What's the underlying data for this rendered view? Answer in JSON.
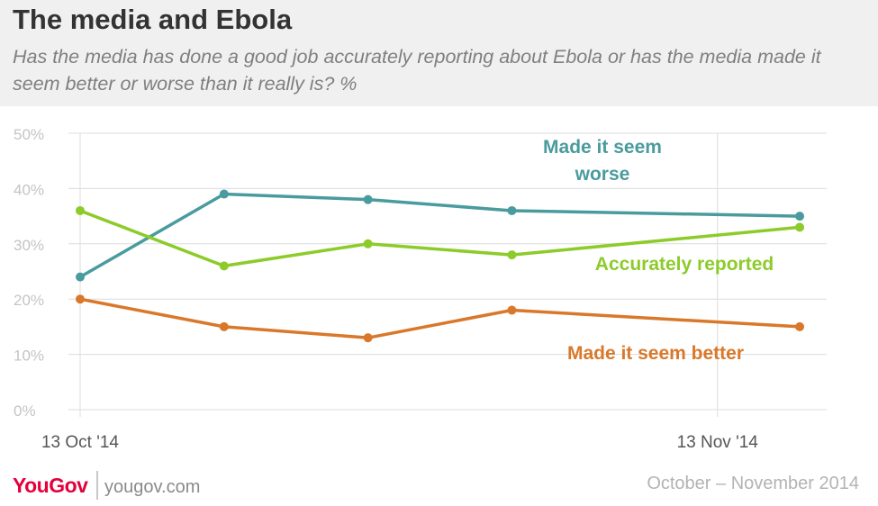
{
  "title": "The media and Ebola",
  "subtitle": "Has the media has done a good job accurately reporting about Ebola or has the media made it seem better or worse than it really is? %",
  "footer": {
    "logo": "YouGov",
    "site": "yougov.com",
    "date_range": "October – November 2014"
  },
  "chart_data": {
    "type": "line",
    "x": [
      "2014-10-13",
      "2014-10-20",
      "2014-10-27",
      "2014-11-03",
      "2014-11-17"
    ],
    "x_ticks": [
      {
        "date": "2014-10-13",
        "label": "13 Oct '14"
      },
      {
        "date": "2014-11-13",
        "label": "13 Nov '14"
      }
    ],
    "y_ticks": [
      "0%",
      "10%",
      "20%",
      "30%",
      "40%",
      "50%"
    ],
    "ylim": [
      0,
      50
    ],
    "grid": true,
    "legend": "inline",
    "series": [
      {
        "name": "Made it seem worse",
        "label_lines": [
          "Made it seem",
          "worse"
        ],
        "color": "#4a9b9e",
        "values": [
          24,
          39,
          38,
          36,
          35
        ]
      },
      {
        "name": "Accurately reported",
        "label_lines": [
          "Accurately reported"
        ],
        "color": "#8dcb2a",
        "values": [
          36,
          26,
          30,
          28,
          33
        ]
      },
      {
        "name": "Made it seem better",
        "label_lines": [
          "Made it seem better"
        ],
        "color": "#d9782a",
        "values": [
          20,
          15,
          13,
          18,
          15
        ]
      }
    ]
  }
}
